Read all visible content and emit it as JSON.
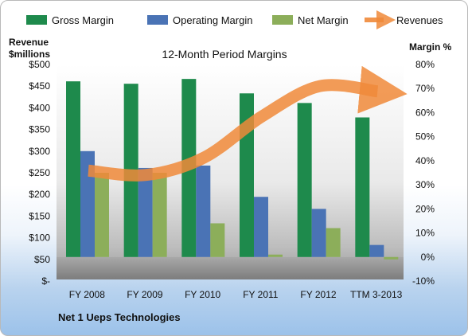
{
  "chart_data": {
    "type": "bar",
    "title": "12-Month Period Margins",
    "categories": [
      "FY 2008",
      "FY 2009",
      "FY 2010",
      "FY 2011",
      "FY 2012",
      "TTM 3-2013"
    ],
    "series": [
      {
        "name": "Gross Margin",
        "axis": "right",
        "color": "#1e8a4c",
        "values": [
          73,
          72,
          74,
          68,
          64,
          58
        ]
      },
      {
        "name": "Operating Margin",
        "axis": "right",
        "color": "#4a73b5",
        "values": [
          44,
          37,
          38,
          25,
          20,
          5
        ]
      },
      {
        "name": "Net Margin",
        "axis": "right",
        "color": "#8cae5a",
        "values": [
          35,
          35,
          14,
          1,
          12,
          -1
        ]
      },
      {
        "name": "Revenues",
        "axis": "left",
        "color": "#f08a3a",
        "type": "line",
        "values": [
          255,
          245,
          285,
          380,
          450,
          438
        ]
      }
    ],
    "y_left": {
      "label_lines": [
        "Revenue",
        "$millions"
      ],
      "ylim": [
        0,
        500
      ],
      "ticks": [
        0,
        50,
        100,
        150,
        200,
        250,
        300,
        350,
        400,
        450,
        500
      ],
      "tick_labels": [
        "$-",
        "$50",
        "$100",
        "$150",
        "$200",
        "$250",
        "$300",
        "$350",
        "$400",
        "$450",
        "$500"
      ]
    },
    "y_right": {
      "label": "Margin %",
      "ylim": [
        -10,
        80
      ],
      "ticks": [
        -10,
        0,
        10,
        20,
        30,
        40,
        50,
        60,
        70,
        80
      ],
      "tick_labels": [
        "-10%",
        "0%",
        "10%",
        "20%",
        "30%",
        "40%",
        "50%",
        "60%",
        "70%",
        "80%"
      ]
    },
    "legend_position": "top",
    "grid": false
  },
  "footer": {
    "company": "Net 1 Ueps Technologies"
  }
}
